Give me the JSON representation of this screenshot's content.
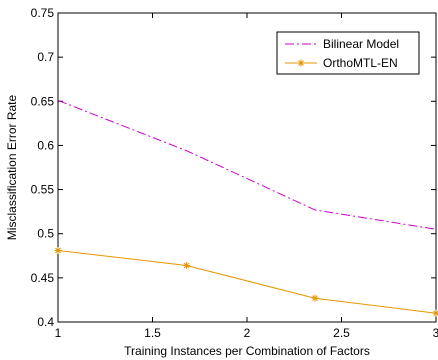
{
  "chart_data": {
    "type": "line",
    "title": "",
    "xlabel": "Training Instances per Combination of Factors",
    "ylabel": "Misclassification Error Rate",
    "xlim": [
      1,
      3
    ],
    "ylim": [
      0.4,
      0.75
    ],
    "grid": false,
    "legend_position": "top-right",
    "x_ticks": [
      1,
      1.5,
      2,
      2.5,
      3
    ],
    "x_tick_labels": [
      "1",
      "1.5",
      "2",
      "2.5",
      "3"
    ],
    "y_ticks": [
      0.4,
      0.45,
      0.5,
      0.55,
      0.6,
      0.65,
      0.7,
      0.75
    ],
    "y_tick_labels": [
      "0.4",
      "0.45",
      "0.5",
      "0.55",
      "0.6",
      "0.65",
      "0.7",
      "0.75"
    ],
    "series": [
      {
        "name": "Bilinear Model",
        "color": "#cc00cc",
        "line_style": "dash-dot",
        "marker": "none",
        "x": [
          1,
          1.68,
          2.36,
          3
        ],
        "y": [
          0.651,
          0.594,
          0.527,
          0.505
        ]
      },
      {
        "name": "OrthoMTL-EN",
        "color": "#e69500",
        "line_style": "solid",
        "marker": "asterisk",
        "x": [
          1,
          1.68,
          2.36,
          3
        ],
        "y": [
          0.481,
          0.464,
          0.427,
          0.41
        ]
      }
    ]
  }
}
